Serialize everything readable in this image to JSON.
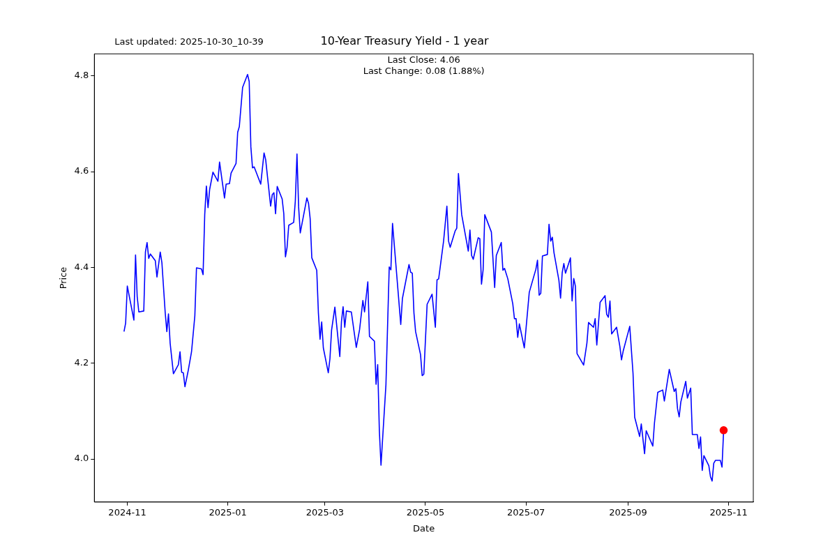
{
  "chart_data": {
    "type": "line",
    "title": "10-Year Treasury Yield - 1 year",
    "xlabel": "Date",
    "ylabel": "Price",
    "annotations": [
      "Last updated: 2025-10-30_10-39",
      "Last Close: 4.06",
      "Last Change: 0.08 (1.88%)"
    ],
    "x": [
      "2024-10-30",
      "2024-10-31",
      "2024-11-01",
      "2024-11-05",
      "2024-11-06",
      "2024-11-07",
      "2024-11-08",
      "2024-11-11",
      "2024-11-12",
      "2024-11-13",
      "2024-11-14",
      "2024-11-15",
      "2024-11-18",
      "2024-11-19",
      "2024-11-21",
      "2024-11-22",
      "2024-11-24",
      "2024-11-25",
      "2024-11-26",
      "2024-11-27",
      "2024-11-29",
      "2024-12-02",
      "2024-12-03",
      "2024-12-04",
      "2024-12-05",
      "2024-12-06",
      "2024-12-08",
      "2024-12-10",
      "2024-12-12",
      "2024-12-13",
      "2024-12-16",
      "2024-12-17",
      "2024-12-18",
      "2024-12-19",
      "2024-12-20",
      "2024-12-21",
      "2024-12-23",
      "2024-12-26",
      "2024-12-27",
      "2024-12-30",
      "2024-12-31",
      "2025-01-02",
      "2025-01-03",
      "2025-01-06",
      "2025-01-07",
      "2025-01-08",
      "2025-01-10",
      "2025-01-13",
      "2025-01-14",
      "2025-01-15",
      "2025-01-16",
      "2025-01-17",
      "2025-01-21",
      "2025-01-23",
      "2025-01-24",
      "2025-01-27",
      "2025-01-28",
      "2025-01-29",
      "2025-01-30",
      "2025-01-31",
      "2025-02-03",
      "2025-02-04",
      "2025-02-05",
      "2025-02-06",
      "2025-02-07",
      "2025-02-10",
      "2025-02-11",
      "2025-02-12",
      "2025-02-13",
      "2025-02-14",
      "2025-02-18",
      "2025-02-19",
      "2025-02-20",
      "2025-02-21",
      "2025-02-24",
      "2025-02-25",
      "2025-02-26",
      "2025-02-27",
      "2025-02-28",
      "2025-03-03",
      "2025-03-04",
      "2025-03-05",
      "2025-03-07",
      "2025-03-10",
      "2025-03-11",
      "2025-03-12",
      "2025-03-13",
      "2025-03-14",
      "2025-03-17",
      "2025-03-20",
      "2025-03-22",
      "2025-03-24",
      "2025-03-25",
      "2025-03-27",
      "2025-03-28",
      "2025-03-31",
      "2025-04-01",
      "2025-04-02",
      "2025-04-03",
      "2025-04-04",
      "2025-04-07",
      "2025-04-09",
      "2025-04-10",
      "2025-04-11",
      "2025-04-16",
      "2025-04-17",
      "2025-04-21",
      "2025-04-22",
      "2025-04-23",
      "2025-04-24",
      "2025-04-25",
      "2025-04-28",
      "2025-04-29",
      "2025-04-30",
      "2025-05-02",
      "2025-05-05",
      "2025-05-07",
      "2025-05-08",
      "2025-05-09",
      "2025-05-12",
      "2025-05-14",
      "2025-05-15",
      "2025-05-16",
      "2025-05-19",
      "2025-05-20",
      "2025-05-21",
      "2025-05-23",
      "2025-05-27",
      "2025-05-28",
      "2025-05-29",
      "2025-05-30",
      "2025-06-02",
      "2025-06-03",
      "2025-06-04",
      "2025-06-05",
      "2025-06-06",
      "2025-06-10",
      "2025-06-12",
      "2025-06-13",
      "2025-06-16",
      "2025-06-17",
      "2025-06-18",
      "2025-06-20",
      "2025-06-23",
      "2025-06-24",
      "2025-06-25",
      "2025-06-26",
      "2025-06-27",
      "2025-06-30",
      "2025-07-03",
      "2025-07-07",
      "2025-07-08",
      "2025-07-09",
      "2025-07-10",
      "2025-07-11",
      "2025-07-14",
      "2025-07-15",
      "2025-07-16",
      "2025-07-17",
      "2025-07-18",
      "2025-07-21",
      "2025-07-22",
      "2025-07-23",
      "2025-07-24",
      "2025-07-25",
      "2025-07-28",
      "2025-07-29",
      "2025-07-30",
      "2025-07-31",
      "2025-08-01",
      "2025-08-05",
      "2025-08-07",
      "2025-08-08",
      "2025-08-11",
      "2025-08-12",
      "2025-08-13",
      "2025-08-15",
      "2025-08-18",
      "2025-08-19",
      "2025-08-20",
      "2025-08-21",
      "2025-08-22",
      "2025-08-25",
      "2025-08-27",
      "2025-08-28",
      "2025-08-29",
      "2025-09-02",
      "2025-09-04",
      "2025-09-05",
      "2025-09-08",
      "2025-09-09",
      "2025-09-11",
      "2025-09-12",
      "2025-09-16",
      "2025-09-17",
      "2025-09-19",
      "2025-09-22",
      "2025-09-23",
      "2025-09-26",
      "2025-09-29",
      "2025-09-30",
      "2025-10-01",
      "2025-10-02",
      "2025-10-03",
      "2025-10-06",
      "2025-10-07",
      "2025-10-09",
      "2025-10-10",
      "2025-10-13",
      "2025-10-14",
      "2025-10-15",
      "2025-10-16",
      "2025-10-17",
      "2025-10-20",
      "2025-10-21",
      "2025-10-22",
      "2025-10-23",
      "2025-10-24",
      "2025-10-27",
      "2025-10-28",
      "2025-10-29"
    ],
    "series": [
      {
        "color": "#0000ff",
        "values": [
          4.266,
          4.284,
          4.361,
          4.29,
          4.426,
          4.339,
          4.307,
          4.309,
          4.432,
          4.452,
          4.419,
          4.428,
          4.414,
          4.38,
          4.432,
          4.41,
          4.306,
          4.266,
          4.303,
          4.242,
          4.178,
          4.197,
          4.224,
          4.181,
          4.18,
          4.151,
          4.185,
          4.224,
          4.299,
          4.399,
          4.397,
          4.385,
          4.51,
          4.57,
          4.525,
          4.563,
          4.599,
          4.58,
          4.62,
          4.545,
          4.574,
          4.575,
          4.597,
          4.617,
          4.682,
          4.694,
          4.776,
          4.803,
          4.788,
          4.652,
          4.608,
          4.61,
          4.574,
          4.639,
          4.625,
          4.528,
          4.552,
          4.556,
          4.512,
          4.569,
          4.543,
          4.512,
          4.422,
          4.442,
          4.488,
          4.494,
          4.539,
          4.637,
          4.526,
          4.472,
          4.545,
          4.534,
          4.502,
          4.42,
          4.394,
          4.305,
          4.25,
          4.286,
          4.232,
          4.18,
          4.209,
          4.269,
          4.317,
          4.214,
          4.287,
          4.318,
          4.275,
          4.309,
          4.307,
          4.233,
          4.27,
          4.331,
          4.307,
          4.37,
          4.256,
          4.246,
          4.156,
          4.197,
          4.059,
          3.987,
          4.155,
          4.401,
          4.395,
          4.492,
          4.281,
          4.335,
          4.406,
          4.39,
          4.388,
          4.305,
          4.266,
          4.218,
          4.174,
          4.177,
          4.323,
          4.344,
          4.275,
          4.374,
          4.376,
          4.455,
          4.528,
          4.455,
          4.442,
          4.476,
          4.482,
          4.596,
          4.51,
          4.434,
          4.478,
          4.425,
          4.417,
          4.462,
          4.46,
          4.365,
          4.395,
          4.51,
          4.474,
          4.358,
          4.425,
          4.452,
          4.394,
          4.398,
          4.376,
          4.324,
          4.293,
          4.293,
          4.254,
          4.282,
          4.232,
          4.348,
          4.396,
          4.415,
          4.342,
          4.346,
          4.424,
          4.427,
          4.49,
          4.455,
          4.463,
          4.431,
          4.373,
          4.336,
          4.389,
          4.408,
          4.388,
          4.42,
          4.33,
          4.377,
          4.361,
          4.22,
          4.196,
          4.242,
          4.285,
          4.275,
          4.293,
          4.238,
          4.327,
          4.341,
          4.302,
          4.296,
          4.33,
          4.261,
          4.275,
          4.235,
          4.207,
          4.225,
          4.277,
          4.178,
          4.087,
          4.047,
          4.073,
          4.011,
          4.059,
          4.027,
          4.075,
          4.139,
          4.144,
          4.121,
          4.187,
          4.141,
          4.147,
          4.105,
          4.088,
          4.119,
          4.162,
          4.127,
          4.148,
          4.051,
          4.051,
          4.022,
          4.046,
          3.976,
          4.007,
          3.986,
          3.963,
          3.954,
          3.991,
          3.997,
          3.997,
          3.983,
          4.06
        ]
      },
      {
        "type": "scatter",
        "color": "#ff0000",
        "marker": "circle",
        "x": [
          "2025-10-29"
        ],
        "values": [
          4.06
        ]
      }
    ],
    "xlim": [
      "2024-10-12",
      "2025-11-16"
    ],
    "xticks": [
      "2024-11",
      "2025-01",
      "2025-03",
      "2025-05",
      "2025-07",
      "2025-09",
      "2025-11"
    ],
    "ylim": [
      3.91,
      4.846
    ],
    "yticks": [
      {
        "value": 4,
        "label": "4.0"
      },
      4.2,
      4.4,
      4.6,
      4.8
    ],
    "grid": false,
    "legend": false,
    "marker": "none",
    "line_style": "solid"
  }
}
